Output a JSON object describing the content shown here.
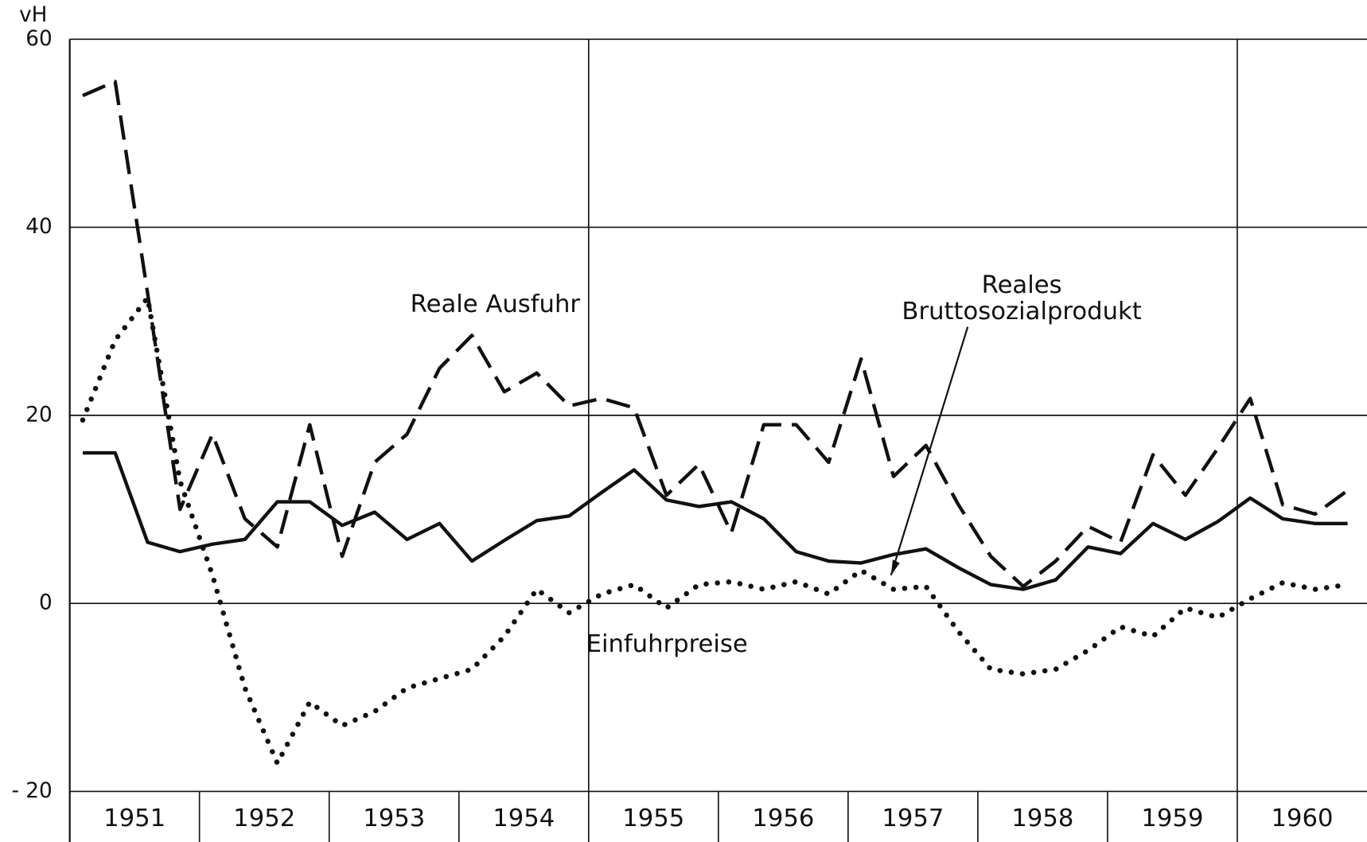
{
  "chart_data": {
    "type": "line",
    "ylabel": "vH",
    "ylim": [
      -20,
      60
    ],
    "yticks": [
      {
        "value": -20,
        "label": "- 20"
      },
      0,
      20,
      40,
      60
    ],
    "grid": true,
    "categories": [
      "1951",
      null,
      null,
      null,
      "1952",
      null,
      null,
      null,
      "1953",
      null,
      null,
      null,
      "1954",
      null,
      null,
      null,
      "1955",
      null,
      null,
      null,
      "1956",
      null,
      null,
      null,
      "1957",
      null,
      null,
      null,
      "1958",
      null,
      null,
      null,
      "1959",
      null,
      null,
      null,
      "1960",
      null,
      null,
      null
    ],
    "series": [
      {
        "name": "Reale Ausfuhr",
        "color": "#111111",
        "style": "dashed",
        "values": [
          54,
          55.5,
          33,
          10,
          18,
          9,
          6,
          19,
          5,
          15,
          18,
          25,
          28.5,
          22.5,
          24.5,
          21,
          21.8,
          20.8,
          11.5,
          14.8,
          7.5,
          19,
          19,
          15,
          26,
          13.5,
          16.8,
          10.5,
          5,
          1.8,
          4.5,
          8.2,
          6.5,
          15.8,
          11.5,
          16.5,
          21.8,
          10.5,
          9.5,
          12
        ]
      },
      {
        "name": "Reales Bruttosozialprodukt",
        "color": "#111111",
        "style": "solid",
        "values": [
          16,
          16,
          6.5,
          5.5,
          6.3,
          6.8,
          10.8,
          10.8,
          8.3,
          9.7,
          6.8,
          8.5,
          4.5,
          6.7,
          8.8,
          9.3,
          11.8,
          14.2,
          11,
          10.3,
          10.8,
          9,
          5.5,
          4.5,
          4.3,
          5.2,
          5.8,
          3.8,
          2,
          1.5,
          2.5,
          6,
          5.3,
          8.5,
          6.8,
          8.7,
          11.2,
          9,
          8.5,
          8.5
        ]
      },
      {
        "name": "Einfuhrpreise",
        "color": "#111111",
        "style": "dotted",
        "values": [
          19.5,
          28,
          32.5,
          13,
          3,
          -9,
          -17,
          -10.5,
          -13,
          -11.5,
          -9,
          -8,
          -7,
          -3.5,
          1.5,
          -1,
          1,
          2,
          -0.5,
          2,
          2.3,
          1.5,
          2.3,
          1,
          3.5,
          1.5,
          1.8,
          -3,
          -7,
          -7.5,
          -7,
          -5,
          -2.5,
          -3.5,
          -0.5,
          -1.5,
          0.5,
          2.2,
          1.5,
          2
        ]
      }
    ]
  }
}
